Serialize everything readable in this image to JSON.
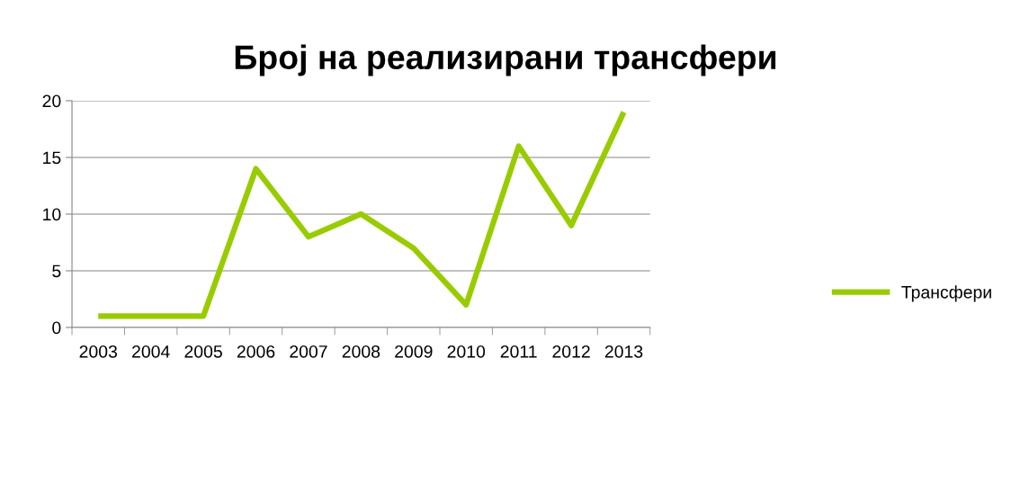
{
  "chart_data": {
    "type": "line",
    "title": "Број на реализирани трансфери",
    "categories": [
      "2003",
      "2004",
      "2005",
      "2006",
      "2007",
      "2008",
      "2009",
      "2010",
      "2011",
      "2012",
      "2013"
    ],
    "series": [
      {
        "name": "Трансфери",
        "color": "#99cc00",
        "values": [
          1,
          1,
          1,
          14,
          8,
          10,
          7,
          2,
          16,
          9,
          19
        ]
      }
    ],
    "ylim": [
      0,
      20
    ],
    "yticks": [
      0,
      5,
      10,
      15,
      20
    ],
    "grid": "y",
    "legend": "right",
    "marker": "none",
    "line_style": "solid"
  }
}
